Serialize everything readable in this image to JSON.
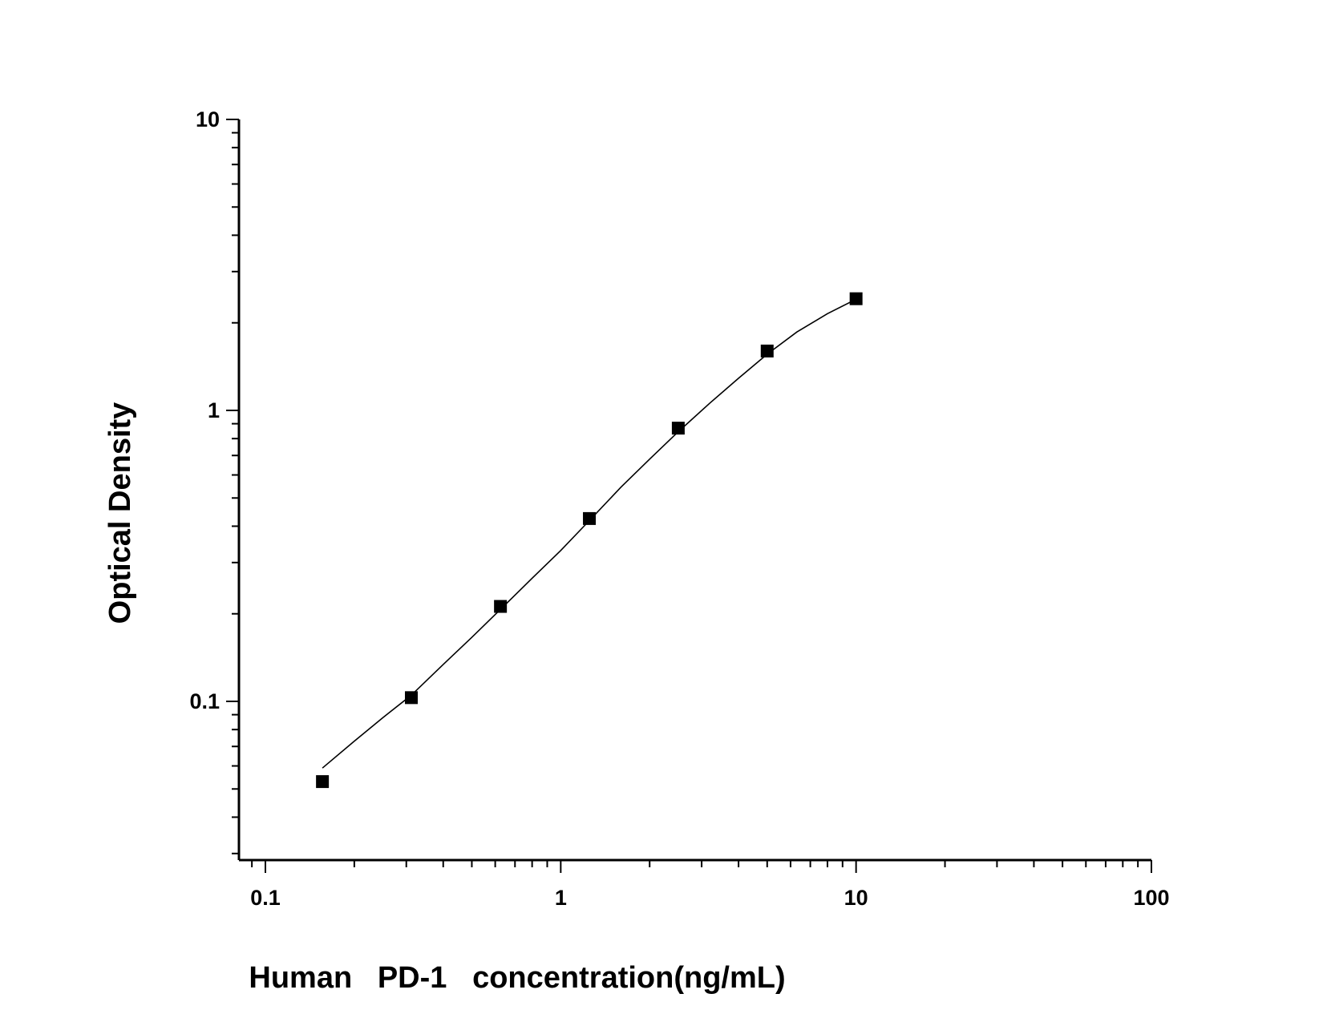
{
  "chart_data": {
    "type": "scatter",
    "title": "",
    "xlabel": "Human   PD-1   concentration(ng/mL)",
    "ylabel": "Optical Density",
    "x_scale": "log",
    "y_scale": "log",
    "xlim": [
      0.08,
      100
    ],
    "ylim": [
      0.03,
      10
    ],
    "x_ticks": [
      0.1,
      1,
      10,
      100
    ],
    "x_tick_labels": [
      "0.1",
      "1",
      "10",
      "100"
    ],
    "y_ticks": [
      0.1,
      1,
      10
    ],
    "y_tick_labels": [
      "0.1",
      "1",
      "10"
    ],
    "grid": false,
    "legend": "none",
    "series": [
      {
        "marker": "square",
        "color": "#000000",
        "x": [
          0.156,
          0.312,
          0.625,
          1.25,
          2.5,
          5,
          10
        ],
        "y": [
          0.053,
          0.103,
          0.212,
          0.425,
          0.869,
          1.6,
          2.42
        ]
      }
    ],
    "fit_curve": {
      "type": "4PL",
      "color": "#000000",
      "x": [
        0.156,
        0.2,
        0.25,
        0.312,
        0.4,
        0.5,
        0.625,
        0.8,
        1,
        1.25,
        1.6,
        2,
        2.5,
        3.2,
        4,
        5,
        6.3,
        8,
        10
      ],
      "y": [
        0.059,
        0.073,
        0.088,
        0.105,
        0.134,
        0.166,
        0.207,
        0.265,
        0.33,
        0.418,
        0.545,
        0.68,
        0.845,
        1.06,
        1.29,
        1.56,
        1.86,
        2.15,
        2.41
      ]
    }
  }
}
